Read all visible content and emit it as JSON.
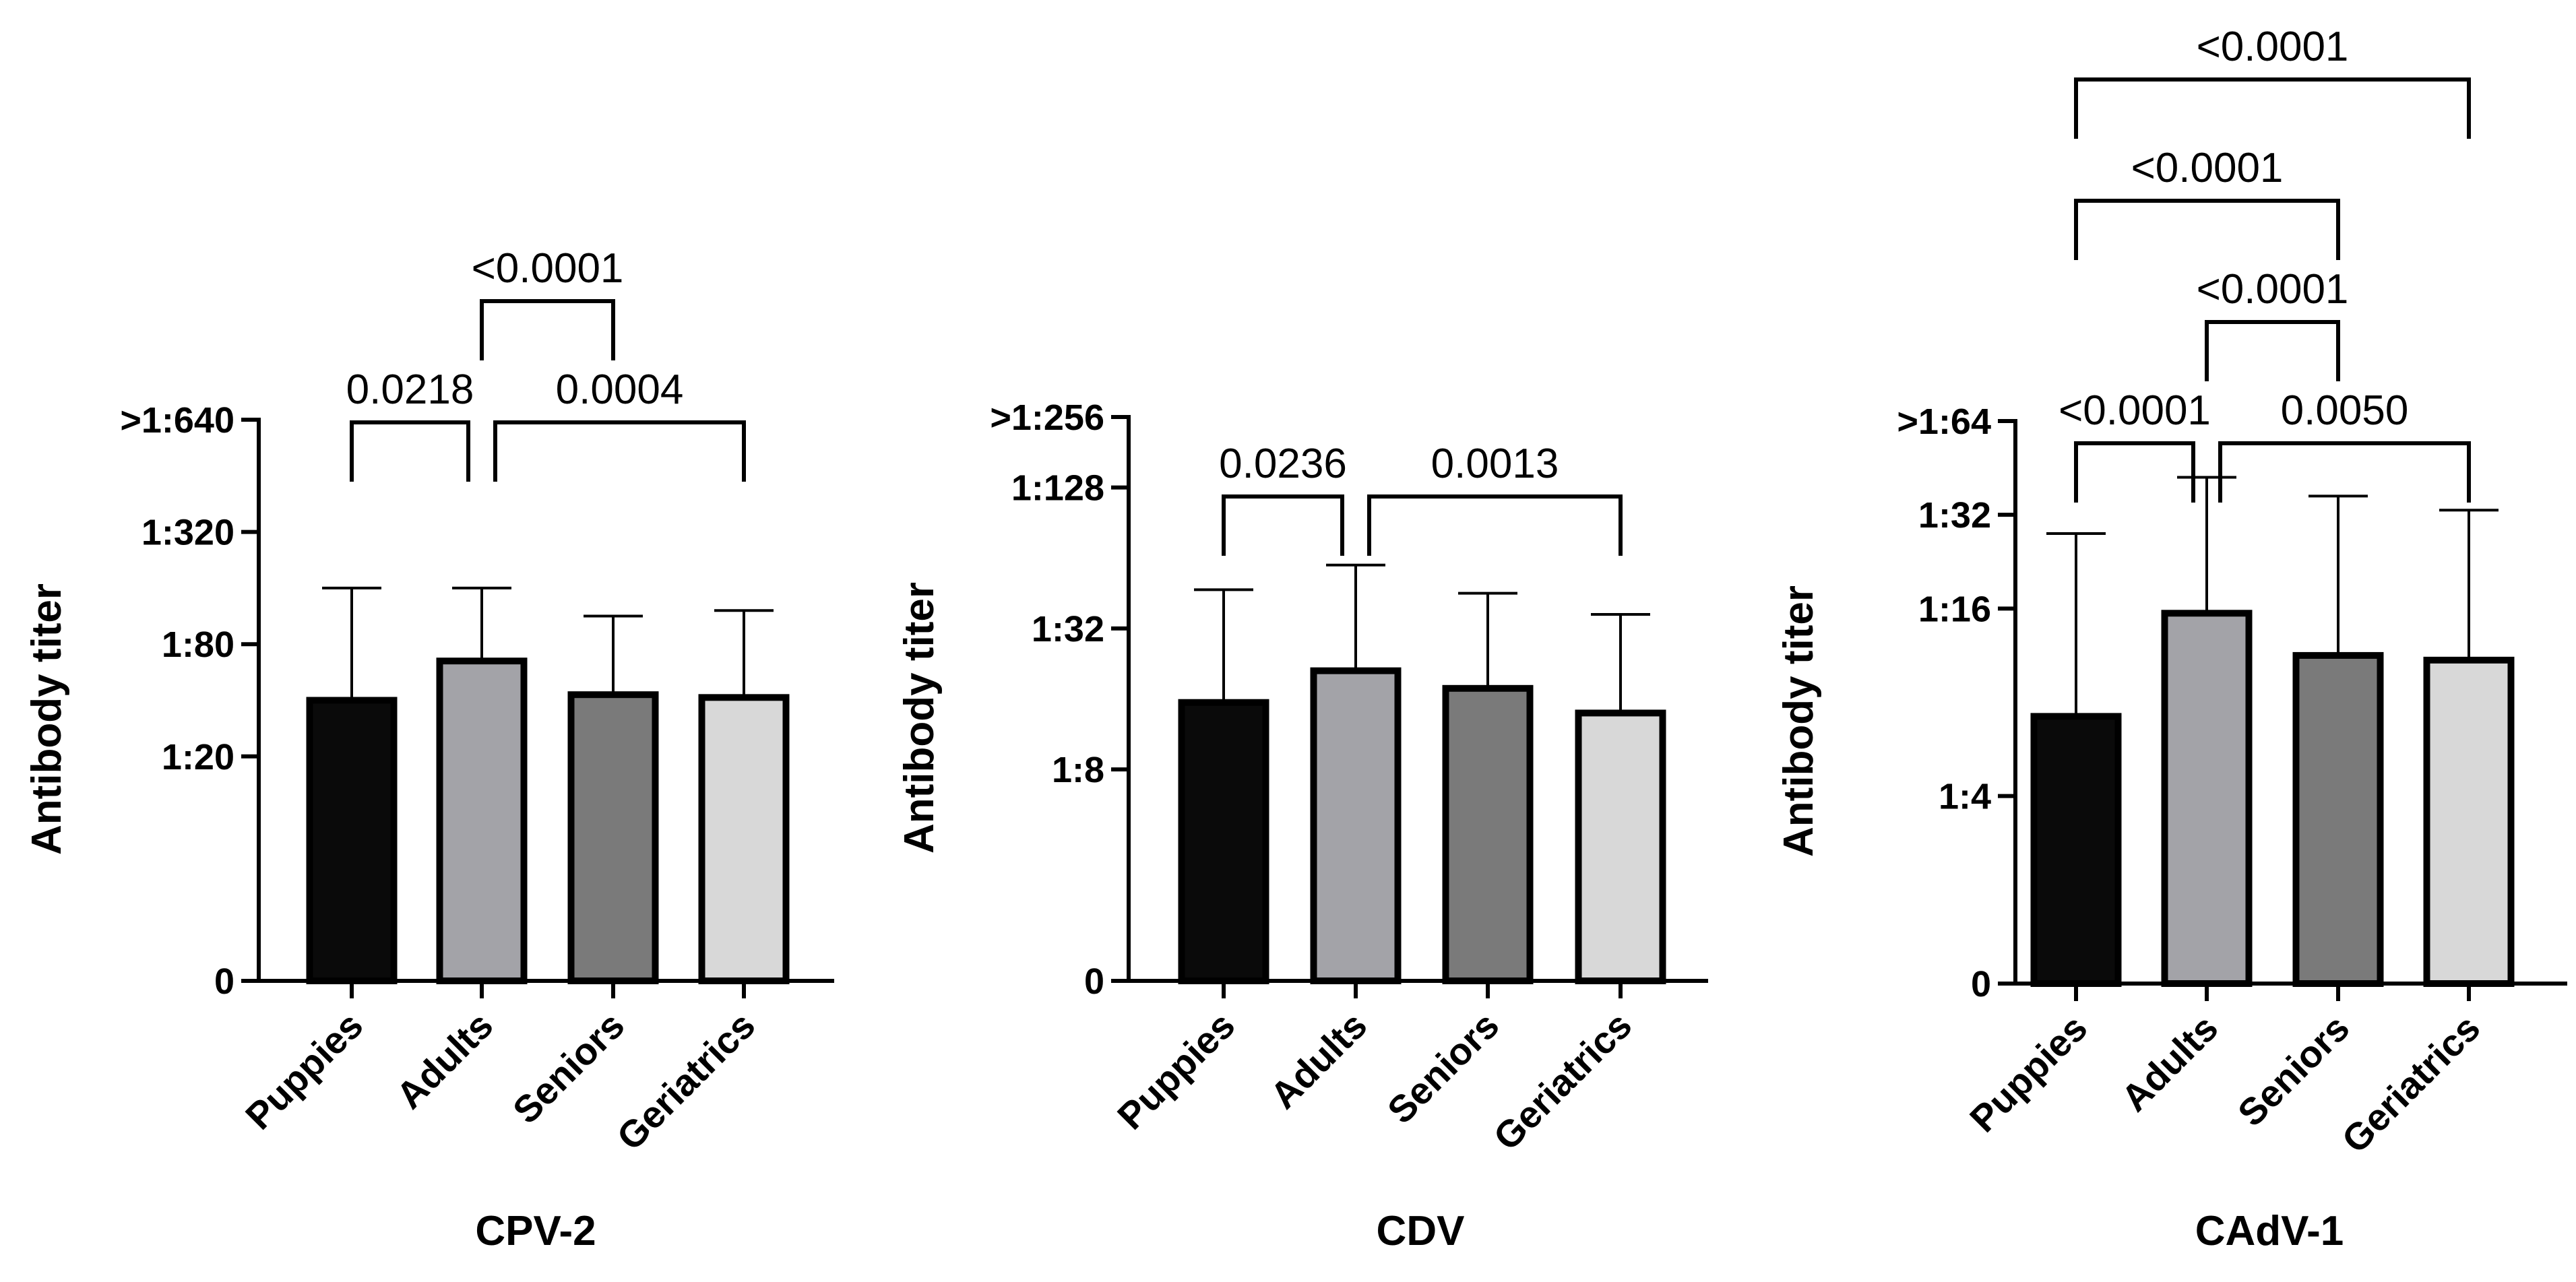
{
  "chart_data": [
    {
      "type": "bar",
      "scale": "log2",
      "xlabel": "CPV-2",
      "ylabel": "Antibody titer",
      "categories": [
        "Puppies",
        "Adults",
        "Seniors",
        "Geriatrics"
      ],
      "colors": [
        "#0a0a0a",
        "#a3a3a8",
        "#7a7a7a",
        "#d8d8d8"
      ],
      "yticks": [
        {
          "value": 0,
          "label": "0"
        },
        {
          "value": 4,
          "label": "1:20"
        },
        {
          "value": 6,
          "label": "1:80"
        },
        {
          "value": 8,
          "label": "1:320"
        },
        {
          "value": 10,
          "label": ">1:640"
        }
      ],
      "ylim": [
        0,
        10
      ],
      "values": [
        5.0,
        5.7,
        5.1,
        5.05
      ],
      "error_upper": [
        7.0,
        7.0,
        6.5,
        6.6
      ],
      "comparisons": [
        {
          "from": 0,
          "to": 1,
          "level": 0,
          "label": "0.0218"
        },
        {
          "from": 1,
          "to": 3,
          "level": 0,
          "label": "0.0004"
        },
        {
          "from": 1,
          "to": 2,
          "level": 1,
          "label": "<0.0001"
        }
      ]
    },
    {
      "type": "bar",
      "scale": "log2",
      "xlabel": "CDV",
      "ylabel": "Antibody titer",
      "categories": [
        "Puppies",
        "Adults",
        "Seniors",
        "Geriatrics"
      ],
      "colors": [
        "#0a0a0a",
        "#a3a3a8",
        "#7a7a7a",
        "#d8d8d8"
      ],
      "yticks": [
        {
          "value": 0,
          "label": "0"
        },
        {
          "value": 3,
          "label": "1:8"
        },
        {
          "value": 5,
          "label": "1:32"
        },
        {
          "value": 7,
          "label": "1:128"
        },
        {
          "value": 8,
          "label": ">1:256"
        }
      ],
      "ylim": [
        0,
        8
      ],
      "values": [
        3.95,
        4.4,
        4.15,
        3.8
      ],
      "error_upper": [
        5.55,
        5.9,
        5.5,
        5.2
      ],
      "comparisons": [
        {
          "from": 0,
          "to": 1,
          "level": 0,
          "label": "0.0236"
        },
        {
          "from": 1,
          "to": 3,
          "level": 0,
          "label": "0.0013"
        }
      ]
    },
    {
      "type": "bar",
      "scale": "log2",
      "xlabel": "CAdV-1",
      "ylabel": "Antibody titer",
      "categories": [
        "Puppies",
        "Adults",
        "Seniors",
        "Geriatrics"
      ],
      "colors": [
        "#0a0a0a",
        "#a3a3a8",
        "#7a7a7a",
        "#d8d8d8"
      ],
      "yticks": [
        {
          "value": 0,
          "label": "0"
        },
        {
          "value": 2,
          "label": "1:4"
        },
        {
          "value": 4,
          "label": "1:16"
        },
        {
          "value": 5,
          "label": "1:32"
        },
        {
          "value": 6,
          "label": ">1:64"
        }
      ],
      "ylim": [
        0,
        6
      ],
      "values": [
        2.85,
        3.95,
        3.5,
        3.45
      ],
      "error_upper": [
        4.8,
        5.4,
        5.2,
        5.05
      ],
      "comparisons": [
        {
          "from": 0,
          "to": 1,
          "level": 0,
          "label": "<0.0001"
        },
        {
          "from": 1,
          "to": 3,
          "level": 0,
          "label": "0.0050"
        },
        {
          "from": 1,
          "to": 2,
          "level": 1,
          "label": "<0.0001"
        },
        {
          "from": 0,
          "to": 2,
          "level": 2,
          "label": "<0.0001"
        },
        {
          "from": 0,
          "to": 3,
          "level": 3,
          "label": "<0.0001"
        }
      ]
    }
  ]
}
